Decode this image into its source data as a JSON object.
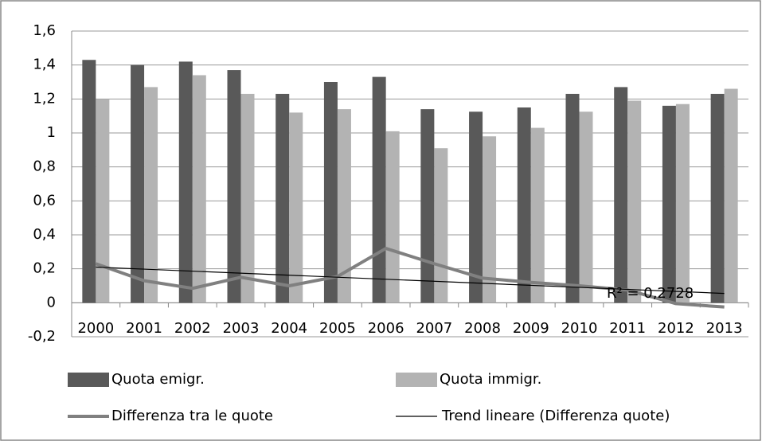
{
  "chart_data": {
    "type": "bar",
    "categories": [
      "2000",
      "2001",
      "2002",
      "2003",
      "2004",
      "2005",
      "2006",
      "2007",
      "2008",
      "2009",
      "2010",
      "2011",
      "2012",
      "2013"
    ],
    "series": [
      {
        "name": "Quota emigr.",
        "color": "#595959",
        "values": [
          1.43,
          1.4,
          1.42,
          1.37,
          1.23,
          1.3,
          1.33,
          1.14,
          1.125,
          1.15,
          1.23,
          1.27,
          1.16,
          1.23
        ]
      },
      {
        "name": "Quota immigr.",
        "color": "#b3b3b3",
        "values": [
          1.2,
          1.27,
          1.34,
          1.23,
          1.12,
          1.14,
          1.01,
          0.91,
          0.98,
          1.03,
          1.125,
          1.19,
          1.17,
          1.26
        ]
      },
      {
        "name": "Differenza tra le quote",
        "type": "line",
        "color": "#808080",
        "values": [
          0.23,
          0.13,
          0.085,
          0.15,
          0.1,
          0.155,
          0.32,
          0.23,
          0.145,
          0.12,
          0.1,
          0.075,
          -0.005,
          -0.025
        ]
      }
    ],
    "trendline": {
      "name": "Trend lineare (Differenza quote)",
      "color": "#000000",
      "values": [
        0.21,
        0.055
      ]
    },
    "annotation": "R² = 0,2728",
    "ylim": [
      -0.2,
      1.6
    ],
    "yticks": [
      {
        "value": -0.2,
        "label": "-0,2"
      },
      0,
      {
        "value": 0.2,
        "label": "0,2"
      },
      {
        "value": 0.4,
        "label": "0,4"
      },
      {
        "value": 0.6,
        "label": "0,6"
      },
      {
        "value": 0.8,
        "label": "0,8"
      },
      1,
      {
        "value": 1.2,
        "label": "1,2"
      },
      {
        "value": 1.4,
        "label": "1,4"
      },
      {
        "value": 1.6,
        "label": "1,6"
      }
    ],
    "grid": true,
    "legend": "bottom"
  }
}
